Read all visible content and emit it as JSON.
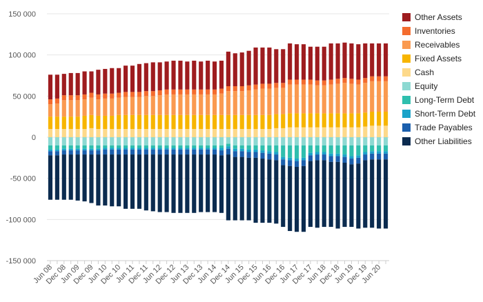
{
  "chart_data": {
    "type": "bar",
    "stacked": true,
    "title": "",
    "xlabel": "",
    "ylabel": "",
    "ylim": [
      -150000,
      150000
    ],
    "yticks": [
      150000,
      100000,
      50000,
      0,
      -50000,
      -100000,
      -150000
    ],
    "ytick_labels": [
      "150 000",
      "100 000",
      "50 000",
      "0",
      "-50 000",
      "-100 000",
      "-150 000"
    ],
    "grid": true,
    "legend_position": "right",
    "x": [
      "Jun 08",
      "Sep 08",
      "Dec 08",
      "Mar 09",
      "Jun 09",
      "Sep 09",
      "Dec 09",
      "Mar 10",
      "Jun 10",
      "Sep 10",
      "Dec 10",
      "Mar 11",
      "Jun 11",
      "Sep 11",
      "Dec 11",
      "Mar 12",
      "Jun 12",
      "Sep 12",
      "Dec 12",
      "Mar 13",
      "Jun 13",
      "Sep 13",
      "Dec 13",
      "Mar 14",
      "Jun 14",
      "Sep 14",
      "Dec 14",
      "Mar 15",
      "Jun 15",
      "Sep 15",
      "Dec 15",
      "Mar 16",
      "Jun 16",
      "Sep 16",
      "Dec 16",
      "Mar 17",
      "Jun 17",
      "Sep 17",
      "Dec 17",
      "Mar 18",
      "Jun 18",
      "Sep 18",
      "Dec 18",
      "Mar 19",
      "Jun 19",
      "Sep 19",
      "Dec 19",
      "Mar 20",
      "Jun 20",
      "Sep 20"
    ],
    "xtick_labels": [
      "Jun 08",
      "Dec 08",
      "Jun 09",
      "Dec 09",
      "Jun 10",
      "Dec 10",
      "Jun 11",
      "Dec 11",
      "Jun 12",
      "Dec 12",
      "Jun 13",
      "Dec 13",
      "Jun 14",
      "Dec 14",
      "Jun 15",
      "Dec 15",
      "Jun 16",
      "Dec 16",
      "Jun 17",
      "Dec 17",
      "Jun 18",
      "Dec 18",
      "Jun 19",
      "Dec 19",
      "Jun 20"
    ],
    "asset_series": [
      {
        "name": "Cash",
        "color": "#FDD98A",
        "values": [
          10000,
          10000,
          10000,
          10000,
          10000,
          10000,
          11000,
          10000,
          10000,
          10000,
          10000,
          10000,
          10000,
          10000,
          10000,
          10000,
          10000,
          10000,
          10000,
          10000,
          10000,
          10000,
          10000,
          10000,
          10000,
          10000,
          10000,
          10000,
          10000,
          10000,
          10000,
          10000,
          10000,
          11000,
          11000,
          12000,
          12000,
          12000,
          12000,
          12000,
          12000,
          12000,
          12000,
          12000,
          12000,
          12000,
          13000,
          14000,
          14000,
          14000
        ]
      },
      {
        "name": "Fixed Assets",
        "color": "#F7B500",
        "values": [
          15000,
          15000,
          15000,
          15000,
          15000,
          16000,
          16000,
          16000,
          16000,
          16000,
          17000,
          17000,
          17000,
          17000,
          17000,
          17000,
          17000,
          17000,
          17000,
          17000,
          17000,
          17000,
          17000,
          17000,
          17000,
          17000,
          17000,
          17000,
          17000,
          17000,
          17000,
          17000,
          17000,
          17000,
          17000,
          17000,
          17000,
          17000,
          17000,
          17000,
          17000,
          17000,
          17000,
          17000,
          17000,
          17000,
          17000,
          17000,
          17000,
          17000
        ]
      },
      {
        "name": "Receivables",
        "color": "#FA9A50",
        "values": [
          15000,
          16000,
          20000,
          20000,
          20000,
          20000,
          21000,
          20000,
          21000,
          21000,
          21000,
          22000,
          22000,
          22000,
          23000,
          23000,
          24000,
          25000,
          25000,
          25000,
          25000,
          25000,
          25000,
          25000,
          25000,
          26000,
          29000,
          29000,
          29000,
          30000,
          31000,
          32000,
          32000,
          32000,
          32000,
          35000,
          35000,
          35000,
          35000,
          34000,
          34000,
          35000,
          36000,
          37000,
          36000,
          35000,
          36000,
          37000,
          37000,
          37000
        ]
      },
      {
        "name": "Inventories",
        "color": "#F46C2E",
        "values": [
          6000,
          6000,
          6000,
          6000,
          6000,
          6000,
          6000,
          6000,
          6000,
          6000,
          6000,
          6000,
          6000,
          6000,
          6000,
          6000,
          6000,
          6000,
          6000,
          6000,
          6000,
          6000,
          6000,
          6000,
          6000,
          6000,
          6000,
          6000,
          6000,
          6000,
          6000,
          6000,
          6000,
          6000,
          6000,
          6000,
          6000,
          6000,
          6000,
          6000,
          6000,
          6000,
          6000,
          6000,
          6000,
          6000,
          6000,
          6000,
          6000,
          6000
        ]
      },
      {
        "name": "Other Assets",
        "color": "#9E1C1F",
        "values": [
          30000,
          29000,
          26000,
          27000,
          27000,
          28000,
          26000,
          30000,
          30000,
          31000,
          30000,
          32000,
          32000,
          34000,
          34000,
          35000,
          34000,
          34000,
          35000,
          35000,
          34000,
          35000,
          34000,
          35000,
          34000,
          34000,
          42000,
          40000,
          41000,
          42000,
          45000,
          44000,
          44000,
          41000,
          41000,
          44000,
          43000,
          43000,
          40000,
          41000,
          41000,
          44000,
          43000,
          43000,
          43000,
          43000,
          42000,
          40000,
          40000,
          40000
        ]
      }
    ],
    "liability_series": [
      {
        "name": "Equity",
        "color": "#8DD9D2",
        "values": [
          -10000,
          -10000,
          -10000,
          -10000,
          -10000,
          -10000,
          -10000,
          -10000,
          -10000,
          -10000,
          -10000,
          -10000,
          -10000,
          -10000,
          -10000,
          -10000,
          -10000,
          -10000,
          -10000,
          -10000,
          -10000,
          -10000,
          -10000,
          -10000,
          -10000,
          -10000,
          -8000,
          -10000,
          -10000,
          -10000,
          -10000,
          -10000,
          -10000,
          -10000,
          -10000,
          -10000,
          -10000,
          -10000,
          -10000,
          -10000,
          -10000,
          -10000,
          -10000,
          -10000,
          -10000,
          -10000,
          -10000,
          -10000,
          -10000,
          -10000
        ]
      },
      {
        "name": "Long-Term Debt",
        "color": "#2FBFAE",
        "values": [
          -5000,
          -5000,
          -4000,
          -4000,
          -4000,
          -4000,
          -4000,
          -4000,
          -3000,
          -3000,
          -3000,
          -3000,
          -3000,
          -3000,
          -3000,
          -3000,
          -3000,
          -3000,
          -3000,
          -3000,
          -3000,
          -3000,
          -3000,
          -3000,
          -3000,
          -3000,
          -3000,
          -4000,
          -4000,
          -5000,
          -5000,
          -6000,
          -7000,
          -8000,
          -14000,
          -15000,
          -16000,
          -15000,
          -9000,
          -8000,
          -8000,
          -10000,
          -10000,
          -11000,
          -13000,
          -12000,
          -8000,
          -7000,
          -7000,
          -7000
        ]
      },
      {
        "name": "Short-Term Debt",
        "color": "#1BA3C9",
        "values": [
          -2000,
          -2000,
          -2000,
          -2000,
          -2000,
          -2000,
          -2000,
          -2000,
          -2000,
          -2000,
          -2000,
          -2000,
          -2000,
          -2000,
          -2000,
          -2000,
          -2000,
          -2000,
          -2000,
          -2000,
          -2000,
          -2000,
          -2000,
          -2000,
          -2000,
          -3000,
          -3000,
          -3000,
          -3000,
          -3000,
          -3000,
          -3000,
          -3000,
          -3000,
          -3000,
          -3000,
          -3000,
          -3000,
          -3000,
          -3000,
          -3000,
          -3000,
          -3000,
          -3000,
          -3000,
          -3000,
          -3000,
          -3000,
          -3000,
          -3000
        ]
      },
      {
        "name": "Trade Payables",
        "color": "#1B5FAD",
        "values": [
          -5000,
          -5000,
          -5000,
          -5000,
          -5000,
          -5000,
          -5000,
          -5000,
          -6000,
          -6000,
          -6000,
          -6000,
          -6000,
          -6000,
          -6000,
          -6000,
          -6000,
          -6000,
          -6000,
          -6000,
          -6000,
          -6000,
          -6000,
          -6000,
          -6000,
          -6000,
          -7000,
          -7000,
          -7000,
          -7000,
          -7000,
          -7000,
          -7000,
          -7000,
          -7000,
          -7000,
          -7000,
          -7000,
          -7000,
          -7000,
          -7000,
          -7000,
          -7000,
          -7000,
          -7000,
          -7000,
          -7000,
          -7000,
          -7000,
          -7000
        ]
      },
      {
        "name": "Other Liabilities",
        "color": "#0B2B4F",
        "values": [
          -54000,
          -54000,
          -55000,
          -55000,
          -56000,
          -57000,
          -59000,
          -62000,
          -62000,
          -63000,
          -63000,
          -66000,
          -66000,
          -66000,
          -68000,
          -69000,
          -70000,
          -70000,
          -71000,
          -71000,
          -71000,
          -71000,
          -70000,
          -70000,
          -70000,
          -70000,
          -80000,
          -77000,
          -77000,
          -76000,
          -79000,
          -78000,
          -77000,
          -77000,
          -75000,
          -79000,
          -79000,
          -80000,
          -80000,
          -82000,
          -81000,
          -79000,
          -81000,
          -78000,
          -76000,
          -79000,
          -82000,
          -83000,
          -84000,
          -84000
        ]
      }
    ]
  },
  "legend": [
    {
      "label": "Other Assets",
      "color": "#9E1C1F"
    },
    {
      "label": "Inventories",
      "color": "#F46C2E"
    },
    {
      "label": "Receivables",
      "color": "#FA9A50"
    },
    {
      "label": "Fixed Assets",
      "color": "#F7B500"
    },
    {
      "label": "Cash",
      "color": "#FDD98A"
    },
    {
      "label": "Equity",
      "color": "#8DD9D2"
    },
    {
      "label": "Long-Term Debt",
      "color": "#2FBFAE"
    },
    {
      "label": "Short-Term Debt",
      "color": "#1BA3C9"
    },
    {
      "label": "Trade Payables",
      "color": "#1B5FAD"
    },
    {
      "label": "Other Liabilities",
      "color": "#0B2B4F"
    }
  ]
}
